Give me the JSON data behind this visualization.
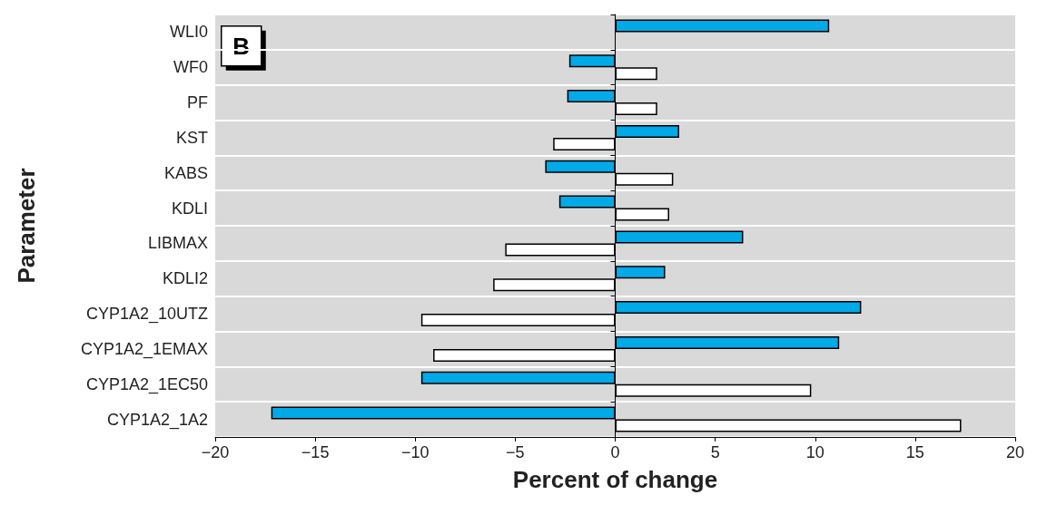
{
  "chart_data": {
    "type": "bar",
    "orientation": "horizontal",
    "xlabel": "Percent of change",
    "ylabel": "Parameter",
    "annotations": [
      "B"
    ],
    "categories": [
      "WLI0",
      "WF0",
      "PF",
      "KST",
      "KABS",
      "KDLI",
      "LIBMAX",
      "KDLI2",
      "CYP1A2_10UTZ",
      "CYP1A2_1EMAX",
      "CYP1A2_1EC50",
      "CYP1A2_1A2"
    ],
    "series": [
      {
        "color": "#00a9e8",
        "values": [
          10.7,
          -2.3,
          -2.4,
          3.2,
          -3.5,
          -2.8,
          6.4,
          2.5,
          12.3,
          11.2,
          -9.7,
          -17.2
        ]
      },
      {
        "color": "#ffffff",
        "values": [
          null,
          2.1,
          2.1,
          -3.1,
          2.9,
          2.7,
          -5.5,
          -6.1,
          -9.7,
          -9.1,
          9.8,
          17.3
        ]
      }
    ],
    "xlim": [
      -20,
      20
    ],
    "xticks": [
      -20,
      -15,
      -10,
      -5,
      0,
      5,
      10,
      15,
      20
    ],
    "grid": "y"
  }
}
